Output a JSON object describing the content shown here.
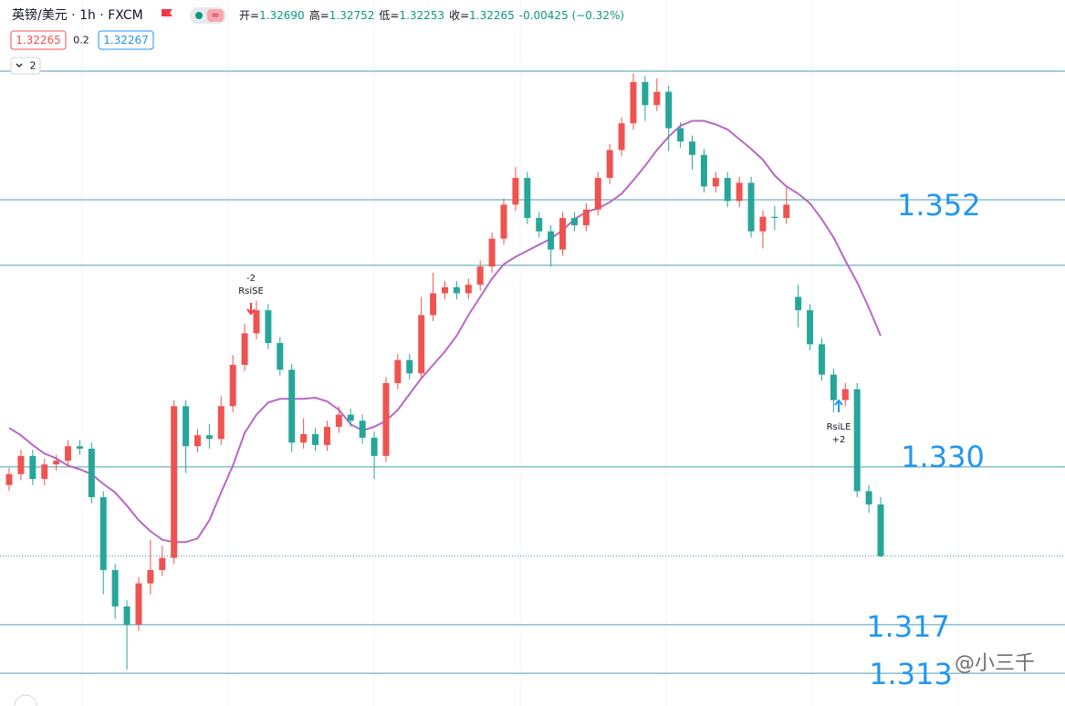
{
  "chart_data": {
    "type": "candlestick",
    "header": {
      "symbol": "英镑/美元 · 1h · FXCM",
      "ohlc": [
        {
          "key": "开=",
          "value": "1.32690"
        },
        {
          "key": "高=",
          "value": "1.32752"
        },
        {
          "key": "低=",
          "value": "1.32253"
        },
        {
          "key": "收=",
          "value": "1.32265"
        }
      ],
      "change": "-0.00425 (−0.32%)",
      "bid": "1.32265",
      "spread": "0.2",
      "ask": "1.32267",
      "collapsed": "2"
    },
    "open": [
      1.3285,
      1.3294,
      1.3309,
      1.329,
      1.3302,
      1.3305,
      1.3317,
      1.3315,
      1.3275,
      1.3215,
      1.3185,
      1.317,
      1.3204,
      1.3215,
      1.3225,
      1.335,
      1.3317,
      1.3326,
      1.3323,
      1.335,
      1.3384,
      1.341,
      1.3429,
      1.3402,
      1.338,
      1.332,
      1.3327,
      1.3318,
      1.3333,
      1.3343,
      1.3338,
      1.3324,
      1.3309,
      1.3369,
      1.3388,
      1.3377,
      1.3425,
      1.3443,
      1.3448,
      1.3443,
      1.345,
      1.3465,
      1.3488,
      1.3516,
      1.3538,
      1.3505,
      1.3494,
      1.3479,
      1.3505,
      1.3499,
      1.3512,
      1.3538,
      1.3561,
      1.3583,
      1.3617,
      1.3598,
      1.3609,
      1.3579,
      1.3568,
      1.3557,
      1.3531,
      1.3538,
      1.3519,
      1.3534,
      1.3494,
      1.3506,
      1.3505,
      1.344,
      1.3429,
      1.3401,
      1.3376,
      1.3355,
      1.3364,
      1.328,
      1.3269
    ],
    "high": [
      1.3299,
      1.3314,
      1.3314,
      1.3307,
      1.331,
      1.3322,
      1.3322,
      1.332,
      1.328,
      1.322,
      1.319,
      1.3209,
      1.324,
      1.3235,
      1.3355,
      1.3355,
      1.3331,
      1.3335,
      1.3358,
      1.3392,
      1.3418,
      1.3437,
      1.3434,
      1.3407,
      1.3385,
      1.334,
      1.3332,
      1.3338,
      1.335,
      1.3348,
      1.3343,
      1.3329,
      1.3374,
      1.3393,
      1.3393,
      1.344,
      1.346,
      1.3453,
      1.3453,
      1.3455,
      1.347,
      1.3493,
      1.3521,
      1.3547,
      1.3543,
      1.351,
      1.3499,
      1.351,
      1.351,
      1.3517,
      1.3543,
      1.3566,
      1.3588,
      1.3624,
      1.3622,
      1.362,
      1.3614,
      1.3584,
      1.3573,
      1.3562,
      1.3543,
      1.3543,
      1.3539,
      1.3539,
      1.3511,
      1.3515,
      1.353,
      1.345,
      1.3434,
      1.3406,
      1.3381,
      1.3369,
      1.3369,
      1.3285,
      1.32752
    ],
    "low": [
      1.328,
      1.3289,
      1.3285,
      1.3285,
      1.3297,
      1.33,
      1.331,
      1.327,
      1.3195,
      1.3175,
      1.3133,
      1.3165,
      1.3195,
      1.321,
      1.322,
      1.3295,
      1.3312,
      1.3315,
      1.3318,
      1.3345,
      1.3379,
      1.3405,
      1.3397,
      1.3375,
      1.3312,
      1.3315,
      1.3313,
      1.3313,
      1.3328,
      1.3333,
      1.3319,
      1.329,
      1.3304,
      1.3364,
      1.3372,
      1.3372,
      1.342,
      1.3438,
      1.3438,
      1.3438,
      1.3445,
      1.346,
      1.3483,
      1.3511,
      1.35,
      1.3489,
      1.3465,
      1.3474,
      1.3494,
      1.3494,
      1.3507,
      1.3533,
      1.3556,
      1.3578,
      1.3585,
      1.3593,
      1.356,
      1.3563,
      1.3545,
      1.3526,
      1.3526,
      1.3514,
      1.3514,
      1.3489,
      1.348,
      1.3495,
      1.35,
      1.3415,
      1.3396,
      1.3371,
      1.3345,
      1.335,
      1.3275,
      1.3262,
      1.32253
    ],
    "close": [
      1.3294,
      1.3309,
      1.329,
      1.3302,
      1.3305,
      1.3317,
      1.3315,
      1.3275,
      1.3215,
      1.3185,
      1.317,
      1.3204,
      1.3215,
      1.3225,
      1.335,
      1.3317,
      1.3326,
      1.3323,
      1.335,
      1.3384,
      1.341,
      1.3429,
      1.3402,
      1.338,
      1.332,
      1.3327,
      1.3318,
      1.3333,
      1.3343,
      1.3338,
      1.3324,
      1.3309,
      1.3369,
      1.3388,
      1.3377,
      1.3425,
      1.3443,
      1.3448,
      1.3443,
      1.345,
      1.3465,
      1.3488,
      1.3516,
      1.3538,
      1.3505,
      1.3494,
      1.3479,
      1.3505,
      1.3499,
      1.3512,
      1.3538,
      1.3561,
      1.3583,
      1.3617,
      1.3598,
      1.3609,
      1.3579,
      1.3568,
      1.3557,
      1.3531,
      1.3538,
      1.3519,
      1.3534,
      1.3494,
      1.3506,
      1.3505,
      1.3516,
      1.3429,
      1.3401,
      1.3376,
      1.3355,
      1.3364,
      1.328,
      1.3269,
      1.32265
    ],
    "up_color": "#ef5350",
    "down_color": "#26a69a",
    "ma": {
      "color": "#b867c6",
      "values": [
        1.3332,
        1.3326,
        1.3318,
        1.3311,
        1.3307,
        1.3301,
        1.3298,
        1.3294,
        1.3286,
        1.3279,
        1.3268,
        1.3256,
        1.3247,
        1.324,
        1.3238,
        1.3238,
        1.3241,
        1.3256,
        1.3279,
        1.3301,
        1.3328,
        1.3343,
        1.3353,
        1.3356,
        1.3356,
        1.3356,
        1.3357,
        1.3354,
        1.3347,
        1.3335,
        1.333,
        1.3333,
        1.3338,
        1.3347,
        1.336,
        1.3373,
        1.3384,
        1.3395,
        1.3408,
        1.3425,
        1.344,
        1.3455,
        1.3467,
        1.3473,
        1.3478,
        1.3483,
        1.3488,
        1.3495,
        1.3504,
        1.351,
        1.3513,
        1.3518,
        1.3525,
        1.3536,
        1.3548,
        1.3561,
        1.3572,
        1.3581,
        1.3585,
        1.3585,
        1.3582,
        1.3578,
        1.357,
        1.3562,
        1.3553,
        1.354,
        1.3531,
        1.3525,
        1.3517,
        1.3504,
        1.3489,
        1.347,
        1.3452,
        1.3431,
        1.3408
      ]
    },
    "ylim": [
      1.3103,
      1.3638
    ],
    "levels": [
      {
        "value": 1.352,
        "label": "1.352"
      },
      {
        "value": 1.33,
        "label": "1.330"
      },
      {
        "value": 1.317,
        "label": "1.317"
      },
      {
        "value": 1.313,
        "label": "1.313"
      }
    ],
    "extra_lines": [
      1.3626,
      1.3466
    ],
    "level_color": "#4a9fb5",
    "level_label_color": "#2196f3",
    "signals": [
      {
        "name": "RsiSE",
        "qty": "-2"
      },
      {
        "name": "RsiLE",
        "qty": "+2"
      }
    ],
    "watermark": "@小三千"
  }
}
